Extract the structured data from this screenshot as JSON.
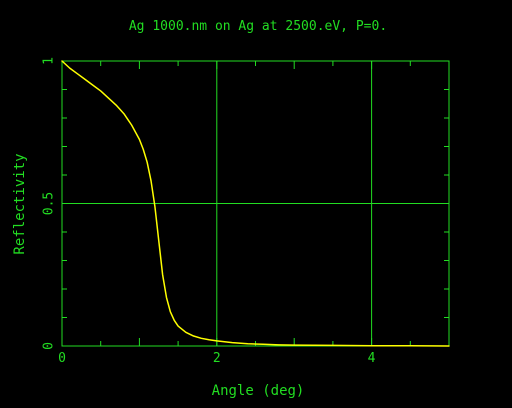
{
  "colors": {
    "background": "#000000",
    "axes": "#22dd22",
    "curve": "#ffff00"
  },
  "chart_data": {
    "type": "line",
    "title": "Ag 1000.nm on Ag at 2500.eV, P=0.",
    "xlabel": "Angle (deg)",
    "ylabel": "Reflectivity",
    "xlim": [
      0,
      5
    ],
    "ylim": [
      0,
      1
    ],
    "grid": true,
    "x_grid_lines": [
      2,
      4
    ],
    "y_grid_lines": [
      0.5
    ],
    "x_ticks": [
      {
        "value": 0,
        "label": "0"
      },
      {
        "value": 2,
        "label": "2"
      },
      {
        "value": 4,
        "label": "4"
      }
    ],
    "y_ticks": [
      {
        "value": 0,
        "label": "0"
      },
      {
        "value": 0.5,
        "label": "0.5"
      },
      {
        "value": 1,
        "label": "1"
      }
    ],
    "series": [
      {
        "x": [
          0,
          0.1,
          0.2,
          0.3,
          0.4,
          0.5,
          0.6,
          0.7,
          0.8,
          0.9,
          1.0,
          1.05,
          1.1,
          1.15,
          1.2,
          1.25,
          1.3,
          1.35,
          1.4,
          1.45,
          1.5,
          1.6,
          1.7,
          1.8,
          1.9,
          2.0,
          2.2,
          2.4,
          2.6,
          2.8,
          3.0,
          3.5,
          4.0,
          4.5,
          5.0
        ],
        "y": [
          1.0,
          0.975,
          0.955,
          0.935,
          0.915,
          0.895,
          0.87,
          0.845,
          0.815,
          0.775,
          0.725,
          0.69,
          0.645,
          0.58,
          0.49,
          0.37,
          0.25,
          0.17,
          0.12,
          0.09,
          0.07,
          0.048,
          0.035,
          0.027,
          0.022,
          0.018,
          0.012,
          0.008,
          0.006,
          0.004,
          0.003,
          0.002,
          0.001,
          0.001,
          0.0
        ]
      }
    ]
  }
}
